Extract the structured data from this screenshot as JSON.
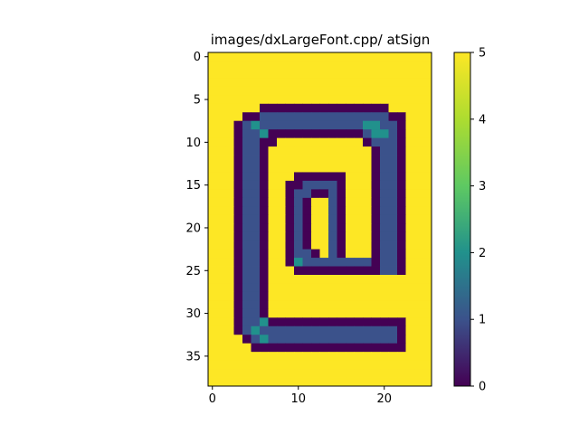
{
  "chart_data": {
    "type": "heatmap",
    "title": "images/dxLargeFont.cpp/ atSign",
    "xlabel": "",
    "ylabel": "",
    "colormap": "viridis",
    "value_range": [
      0,
      5
    ],
    "x_extent": [
      -0.5,
      25.5
    ],
    "y_extent": [
      38.5,
      -0.5
    ],
    "x_ticks": [
      0,
      10,
      20
    ],
    "y_ticks": [
      0,
      5,
      10,
      15,
      20,
      25,
      30,
      35
    ],
    "colorbar_ticks": [
      0,
      1,
      2,
      3,
      4,
      5
    ],
    "grid": false,
    "width_cols": 26,
    "height_rows": 39,
    "legend": [],
    "rows": [
      "55555555555555555555555555",
      "55555555555555555555555555",
      "55555555555555555555555555",
      "55555555555555555555555555",
      "55555555555555555555555555",
      "55555555555555555555555555",
      "55555500000000000000055555",
      "55550011111111111111100555",
      "55501211111111111122110555",
      "55501120000000000012210555",
      "55501100555555555501110555",
      "55501105555555555550110555",
      "55501105555555555550110555",
      "55501105555555555550110555",
      "55501105550000005550110555",
      "55501105500111105550110555",
      "55501105501100105550110555",
      "55501105501055105550110555",
      "55501105501055105550110555",
      "55501105501055105550110555",
      "55501105501055105550110555",
      "55501105501055105550110555",
      "55501105501055105550110555",
      "55501105501105105550110555",
      "55501105502111111110110555",
      "55501105550000000000110555",
      "55501105555555555555555555",
      "55501105555555555555555555",
      "55501105555555555555555555",
      "55501105555555555555555555",
      "55501105555555555555555555",
      "55501120000000000000000555",
      "55501211111111111111110555",
      "55550121111111111111110555",
      "55555000000000000000000555",
      "55555555555555555555555555",
      "55555555555555555555555555",
      "55555555555555555555555555",
      "55555555555555555555555555"
    ]
  }
}
